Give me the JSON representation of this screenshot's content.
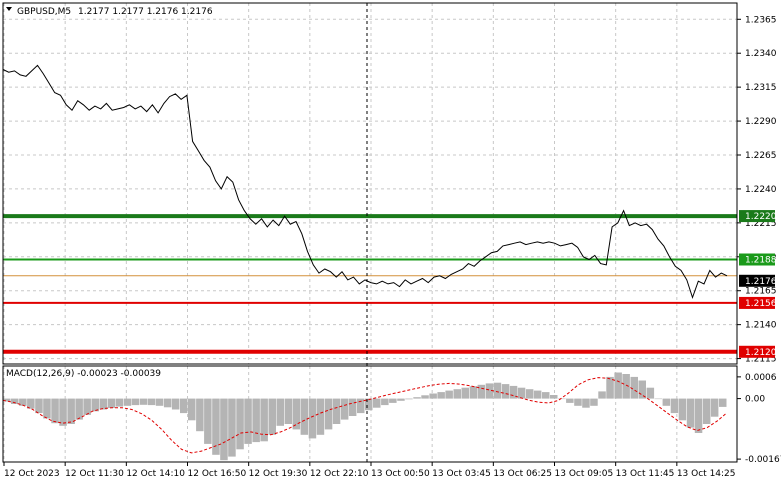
{
  "window": {
    "symbol_timeframe": "GBPUSD,M5",
    "ohlc": "1.2177 1.2177 1.2176 1.2176",
    "icon": "triangle-down-icon"
  },
  "chart_data": [
    {
      "type": "line",
      "title": "GBPUSD,M5",
      "y_ticks": [
        "1.2365",
        "1.2340",
        "1.2315",
        "1.2290",
        "1.2265",
        "1.2240",
        "1.2215",
        "1.2190",
        "1.2165",
        "1.2140",
        "1.2115"
      ],
      "ylim": [
        1.2111,
        1.2377
      ],
      "x_ticks": [
        "12 Oct 2023",
        "12 Oct 11:30",
        "12 Oct 14:10",
        "12 Oct 16:50",
        "12 Oct 19:30",
        "12 Oct 22:10",
        "13 Oct 00:50",
        "13 Oct 03:45",
        "13 Oct 06:25",
        "13 Oct 09:05",
        "13 Oct 11:45",
        "13 Oct 14:25"
      ],
      "grid": true,
      "price_line": {
        "value": 1.2176,
        "label": "1.2176",
        "color": "#000000"
      },
      "levels": [
        {
          "value": 1.222,
          "label": "1.2220",
          "color": "#1a7a1a",
          "weight": "thick"
        },
        {
          "value": 1.2188,
          "label": "1.2188",
          "color": "#1a9a1a",
          "weight": "medium"
        },
        {
          "value": 1.2156,
          "label": "1.2156",
          "color": "#e00000",
          "weight": "medium"
        },
        {
          "value": 1.212,
          "label": "1.2120",
          "color": "#e00000",
          "weight": "thick"
        }
      ],
      "colors": {
        "price": "#000000",
        "grid": "#c8c8c8",
        "axis": "#000000",
        "crosshair": "#000000"
      },
      "series": [
        {
          "values": [
            1.2328,
            1.2326,
            1.2327,
            1.2324,
            1.2323,
            1.2327,
            1.2331,
            1.2325,
            1.2318,
            1.2311,
            1.2309,
            1.2302,
            1.2298,
            1.2305,
            1.2302,
            1.2298,
            1.2301,
            1.2299,
            1.2303,
            1.2298,
            1.2299,
            1.23,
            1.2302,
            1.2299,
            1.2301,
            1.2297,
            1.2302,
            1.2296,
            1.2303,
            1.2308,
            1.231,
            1.2306,
            1.2309,
            1.2275,
            1.2268,
            1.2261,
            1.2256,
            1.2246,
            1.224,
            1.2249,
            1.2245,
            1.2232,
            1.2224,
            1.2218,
            1.2214,
            1.2218,
            1.2212,
            1.2217,
            1.2213,
            1.222,
            1.2214,
            1.2216,
            1.2207,
            1.2194,
            1.2184,
            1.2178,
            1.2181,
            1.2179,
            1.2175,
            1.2179,
            1.2173,
            1.2175,
            1.217,
            1.2173,
            1.2171,
            1.217,
            1.2172,
            1.217,
            1.2171,
            1.2168,
            1.2173,
            1.217,
            1.2172,
            1.2174,
            1.2171,
            1.2175,
            1.2176,
            1.2174,
            1.2177,
            1.2179,
            1.2181,
            1.2185,
            1.2183,
            1.2187,
            1.219,
            1.2193,
            1.2194,
            1.2198,
            1.2199,
            1.22,
            1.2201,
            1.2199,
            1.22,
            1.2201,
            1.22,
            1.2201,
            1.22,
            1.2198,
            1.2199,
            1.22,
            1.2197,
            1.219,
            1.2188,
            1.2191,
            1.2185,
            1.2184,
            1.2212,
            1.2215,
            1.2224,
            1.2213,
            1.2215,
            1.2213,
            1.2214,
            1.221,
            1.2203,
            1.2198,
            1.219,
            1.2183,
            1.218,
            1.2173,
            1.216,
            1.2172,
            1.217,
            1.218,
            1.2175,
            1.2178,
            1.2176
          ]
        }
      ]
    },
    {
      "type": "bar",
      "title": "MACD(12,26,9) -0.00023 -0.00039",
      "y_ticks": [
        "0.0006",
        "0.00",
        "-0.00167"
      ],
      "ylim": [
        -0.00175,
        0.0009
      ],
      "colors": {
        "histogram": "#b4b4b4",
        "signal": "#e00000"
      },
      "series": [
        {
          "name": "MACD",
          "values": [
            -8e-05,
            -0.00015,
            -0.0002,
            -0.00028,
            -0.0004,
            -0.00055,
            -0.00068,
            -0.00075,
            -0.0007,
            -0.00058,
            -0.00045,
            -0.00035,
            -0.0003,
            -0.00026,
            -0.00022,
            -0.0002,
            -0.00018,
            -0.00017,
            -0.00018,
            -0.0002,
            -0.00024,
            -0.0003,
            -0.0004,
            -0.0006,
            -0.0009,
            -0.00125,
            -0.00155,
            -0.0017,
            -0.0016,
            -0.0014,
            -0.00125,
            -0.0012,
            -0.00118,
            -0.001,
            -0.00075,
            -0.0007,
            -0.00085,
            -0.001,
            -0.0011,
            -0.001,
            -0.00085,
            -0.0007,
            -0.00058,
            -0.00048,
            -0.0004,
            -0.00032,
            -0.00025,
            -0.00018,
            -0.00012,
            -6e-05,
            -2e-05,
            4e-05,
            9e-05,
            0.00014,
            0.00018,
            0.00022,
            0.00026,
            0.0003,
            0.00034,
            0.00038,
            0.00042,
            0.00044,
            0.0004,
            0.00035,
            0.0003,
            0.00026,
            0.00022,
            0.00018,
            0.0001,
            0.0,
            -0.00012,
            -0.0002,
            -0.00025,
            -0.0002,
            0.0002,
            0.0006,
            0.00072,
            0.00068,
            0.0006,
            0.0005,
            0.0003,
            0.0,
            -0.0002,
            -0.0004,
            -0.0006,
            -0.0008,
            -0.00095,
            -0.0007,
            -0.0005,
            -0.00023
          ]
        },
        {
          "name": "Signal",
          "values": [
            -5e-05,
            -0.0001,
            -0.00018,
            -0.0003,
            -0.00048,
            -0.00062,
            -0.00068,
            -0.00064,
            -0.0005,
            -0.00035,
            -0.00028,
            -0.00025,
            -0.00025,
            -0.0003,
            -0.00042,
            -0.0006,
            -0.00085,
            -0.00115,
            -0.0014,
            -0.0015,
            -0.00145,
            -0.00135,
            -0.00125,
            -0.0011,
            -0.00095,
            -0.00092,
            -0.00098,
            -0.001,
            -0.00092,
            -0.0008,
            -0.00065,
            -0.00052,
            -0.0004,
            -0.0003,
            -0.00022,
            -0.00014,
            -8e-05,
            -2e-05,
            5e-05,
            0.00012,
            0.00018,
            0.00024,
            0.0003,
            0.00036,
            0.0004,
            0.00042,
            0.0004,
            0.00036,
            0.0003,
            0.00024,
            0.00018,
            0.00012,
            4e-05,
            -4e-05,
            -0.0001,
            -0.00012,
            -5e-05,
            0.00015,
            0.00038,
            0.00052,
            0.00058,
            0.00056,
            0.00048,
            0.00035,
            0.00018,
            0.0,
            -0.0002,
            -0.0004,
            -0.0006,
            -0.00078,
            -0.00088,
            -0.0008,
            -0.00062,
            -0.00039
          ]
        }
      ]
    }
  ]
}
